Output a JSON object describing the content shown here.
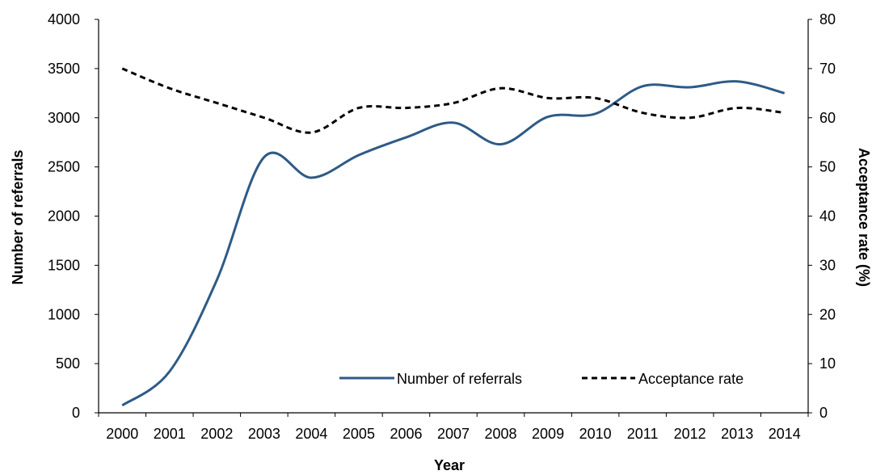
{
  "chart_data": {
    "type": "line",
    "x": [
      "2000",
      "2001",
      "2002",
      "2003",
      "2004",
      "2005",
      "2006",
      "2007",
      "2008",
      "2009",
      "2010",
      "2011",
      "2012",
      "2013",
      "2014"
    ],
    "series": [
      {
        "name": "Number of referrals",
        "axis": "left",
        "style": "solid",
        "color": "#2e5a87",
        "values": [
          75,
          420,
          1350,
          2600,
          2390,
          2620,
          2800,
          2950,
          2730,
          3010,
          3040,
          3320,
          3310,
          3370,
          3250
        ]
      },
      {
        "name": "Acceptance rate",
        "axis": "right",
        "style": "dashed",
        "color": "#000000",
        "values": [
          70,
          66,
          63,
          60,
          57,
          62,
          62,
          63,
          66,
          64,
          64,
          61,
          60,
          62,
          61
        ]
      }
    ],
    "xlabel": "Year",
    "ylabel": "Number of referrals",
    "y2label": "Acceptance rate (%)",
    "ylim": [
      0,
      4000
    ],
    "yticks": [
      "0",
      "500",
      "1000",
      "1500",
      "2000",
      "2500",
      "3000",
      "3500",
      "4000"
    ],
    "y2lim": [
      0,
      80
    ],
    "y2ticks": [
      "0",
      "10",
      "20",
      "30",
      "40",
      "50",
      "60",
      "70",
      "80"
    ],
    "grid": false,
    "legend_position": "bottom-right"
  }
}
